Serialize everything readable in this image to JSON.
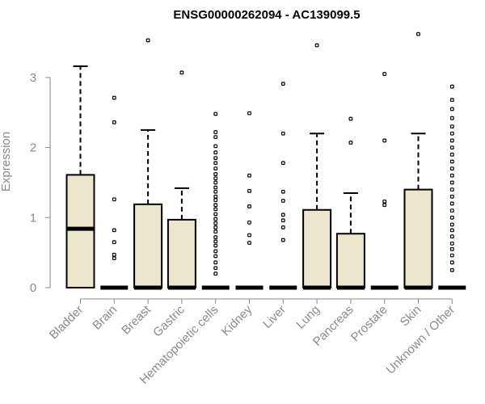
{
  "chart_data": {
    "type": "box",
    "title": "ENSG00000262094 - AC139099.5",
    "xlabel": "",
    "ylabel": "Expression",
    "ylim": [
      0,
      3.6
    ],
    "yticks": [
      0,
      1,
      2,
      3
    ],
    "box_fill": "#ece6cd",
    "box_stroke": "#000000",
    "axis_color": "#8a8a8a",
    "categories": [
      "Bladder",
      "Brain",
      "Breast",
      "Gastric",
      "Hematopoietic cells",
      "Kidney",
      "Liver",
      "Lung",
      "Pancreas",
      "Prostate",
      "Skin",
      "Unknown / Other"
    ],
    "boxes": [
      {
        "q1": 0,
        "median": 0.84,
        "q3": 1.61,
        "whisker_low": 0,
        "whisker_high": 3.16,
        "outliers": []
      },
      {
        "q1": 0,
        "median": 0,
        "q3": 0,
        "whisker_low": 0,
        "whisker_high": 0,
        "outliers": [
          0.42,
          0.47,
          0.65,
          0.82,
          1.26,
          2.36,
          2.71
        ]
      },
      {
        "q1": 0,
        "median": 0,
        "q3": 1.19,
        "whisker_low": 0,
        "whisker_high": 2.25,
        "outliers": [
          3.53
        ]
      },
      {
        "q1": 0,
        "median": 0,
        "q3": 0.97,
        "whisker_low": 0,
        "whisker_high": 1.42,
        "outliers": [
          3.07
        ]
      },
      {
        "q1": 0,
        "median": 0,
        "q3": 0,
        "whisker_low": 0,
        "whisker_high": 0,
        "outliers": [
          0.2,
          0.28,
          0.36,
          0.45,
          0.52,
          0.6,
          0.66,
          0.72,
          0.8,
          0.86,
          0.92,
          0.98,
          1.05,
          1.12,
          1.18,
          1.25,
          1.3,
          1.37,
          1.43,
          1.5,
          1.56,
          1.62,
          1.7,
          1.78,
          1.85,
          1.93,
          2.02,
          2.15,
          2.22,
          2.48
        ]
      },
      {
        "q1": 0,
        "median": 0,
        "q3": 0,
        "whisker_low": 0,
        "whisker_high": 0,
        "outliers": [
          0.64,
          0.75,
          0.93,
          1.16,
          1.38,
          1.6,
          2.49
        ]
      },
      {
        "q1": 0,
        "median": 0,
        "q3": 0,
        "whisker_low": 0,
        "whisker_high": 0,
        "outliers": [
          0.68,
          0.86,
          0.96,
          1.04,
          1.24,
          1.37,
          1.78,
          2.2,
          2.91
        ]
      },
      {
        "q1": 0,
        "median": 0,
        "q3": 1.11,
        "whisker_low": 0,
        "whisker_high": 2.2,
        "outliers": [
          3.46
        ]
      },
      {
        "q1": 0,
        "median": 0,
        "q3": 0.77,
        "whisker_low": 0,
        "whisker_high": 1.35,
        "outliers": [
          2.07,
          2.41
        ]
      },
      {
        "q1": 0,
        "median": 0,
        "q3": 0,
        "whisker_low": 0,
        "whisker_high": 0,
        "outliers": [
          1.18,
          1.23,
          2.1,
          3.05
        ]
      },
      {
        "q1": 0,
        "median": 0,
        "q3": 1.4,
        "whisker_low": 0,
        "whisker_high": 2.2,
        "outliers": [
          3.62
        ]
      },
      {
        "q1": 0,
        "median": 0,
        "q3": 0,
        "whisker_low": 0,
        "whisker_high": 0,
        "outliers": [
          0.25,
          0.36,
          0.46,
          0.55,
          0.63,
          0.73,
          0.82,
          0.9,
          1.0,
          1.1,
          1.2,
          1.3,
          1.4,
          1.5,
          1.6,
          1.7,
          1.8,
          1.9,
          2.0,
          2.1,
          2.2,
          2.3,
          2.42,
          2.55,
          2.68,
          2.87
        ]
      }
    ]
  }
}
